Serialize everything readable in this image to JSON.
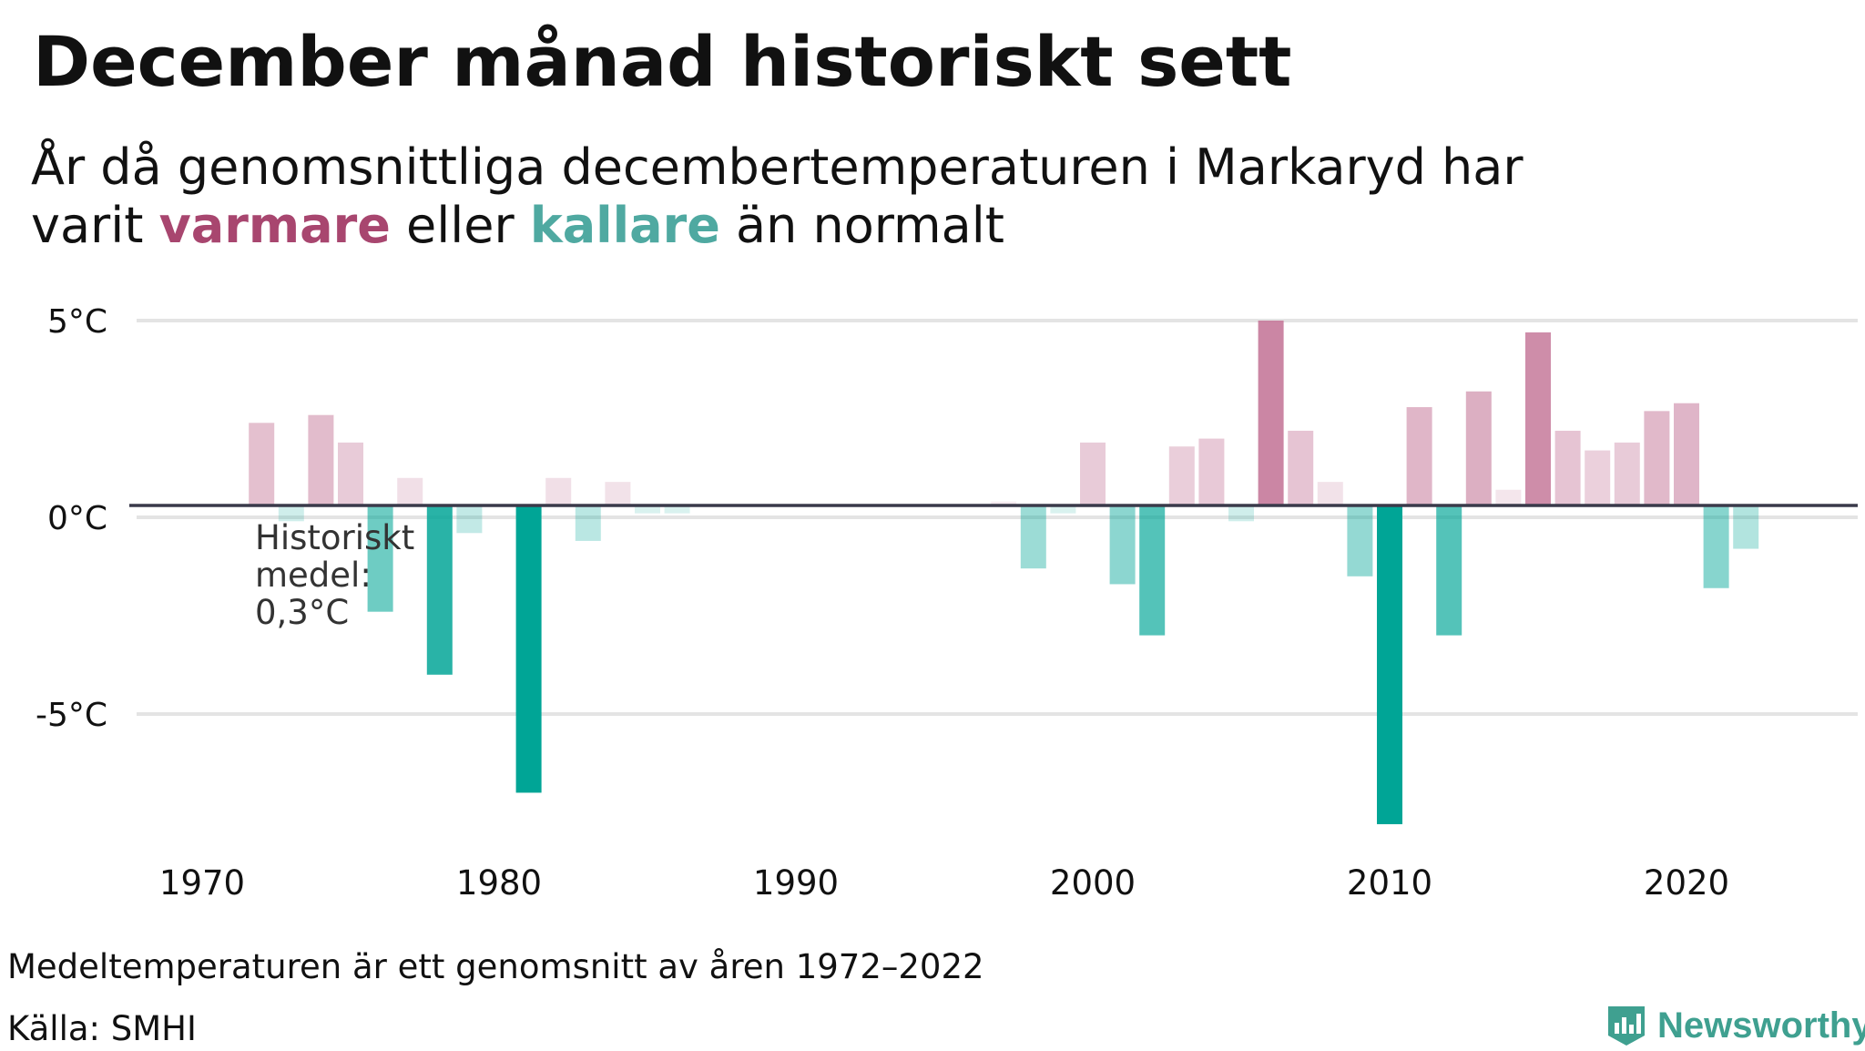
{
  "title": "December månad historiskt sett",
  "subtitle": {
    "line1": "År då genomsnittliga decembertemperaturen i Markaryd har",
    "prefix": "varit ",
    "warm_word": "varmare",
    "middle": " eller ",
    "cold_word": "kallare",
    "suffix": " än normalt"
  },
  "footer": {
    "note": "Medeltemperaturen är ett genomsnitt av åren 1972–2022",
    "source": "Källa: SMHI",
    "brand": "Newsworthy"
  },
  "colors": {
    "warm": "#c5799a",
    "cold": "#00a596",
    "warm_text": "#a8466f",
    "cold_text": "#4fa9a1",
    "baseline": "#3a3a4a",
    "grid": "#e4e4e4",
    "brand": "#3fa090"
  },
  "chart_data": {
    "type": "bar",
    "title": "December månad historiskt sett",
    "y_ticks": [
      {
        "value": 5,
        "label": "5°C"
      },
      {
        "value": 0,
        "label": "0°C"
      },
      {
        "value": -5,
        "label": "-5°C"
      }
    ],
    "x_ticks": [
      1970,
      1980,
      1990,
      2000,
      2010,
      2020
    ],
    "xlim": [
      1966,
      2027
    ],
    "ylim": [
      -8.5,
      5.2
    ],
    "baseline": 0.3,
    "baseline_label": [
      "Historiskt",
      "medel:",
      "0,3°C"
    ],
    "grid": true,
    "bars": [
      {
        "year": 1972,
        "value": 2.4
      },
      {
        "year": 1973,
        "value": -0.1
      },
      {
        "year": 1974,
        "value": 2.6
      },
      {
        "year": 1975,
        "value": 1.9
      },
      {
        "year": 1976,
        "value": -2.4
      },
      {
        "year": 1977,
        "value": 1.0
      },
      {
        "year": 1978,
        "value": -4.0
      },
      {
        "year": 1979,
        "value": -0.4
      },
      {
        "year": 1981,
        "value": -7.0
      },
      {
        "year": 1982,
        "value": 1.0
      },
      {
        "year": 1983,
        "value": -0.6
      },
      {
        "year": 1984,
        "value": 0.9
      },
      {
        "year": 1985,
        "value": 0.1
      },
      {
        "year": 1986,
        "value": 0.1
      },
      {
        "year": 1997,
        "value": 0.4
      },
      {
        "year": 1998,
        "value": -1.3
      },
      {
        "year": 1999,
        "value": 0.1
      },
      {
        "year": 2000,
        "value": 1.9
      },
      {
        "year": 2001,
        "value": -1.7
      },
      {
        "year": 2002,
        "value": -3.0
      },
      {
        "year": 2003,
        "value": 1.8
      },
      {
        "year": 2004,
        "value": 2.0
      },
      {
        "year": 2005,
        "value": -0.1
      },
      {
        "year": 2006,
        "value": 5.0
      },
      {
        "year": 2007,
        "value": 2.2
      },
      {
        "year": 2008,
        "value": 0.9
      },
      {
        "year": 2009,
        "value": -1.5
      },
      {
        "year": 2010,
        "value": -7.8
      },
      {
        "year": 2011,
        "value": 2.8
      },
      {
        "year": 2012,
        "value": -3.0
      },
      {
        "year": 2013,
        "value": 3.2
      },
      {
        "year": 2014,
        "value": 0.7
      },
      {
        "year": 2015,
        "value": 4.7
      },
      {
        "year": 2016,
        "value": 2.2
      },
      {
        "year": 2017,
        "value": 1.7
      },
      {
        "year": 2018,
        "value": 1.9
      },
      {
        "year": 2019,
        "value": 2.7
      },
      {
        "year": 2020,
        "value": 2.9
      },
      {
        "year": 2021,
        "value": -1.8
      },
      {
        "year": 2022,
        "value": -0.8
      }
    ]
  }
}
